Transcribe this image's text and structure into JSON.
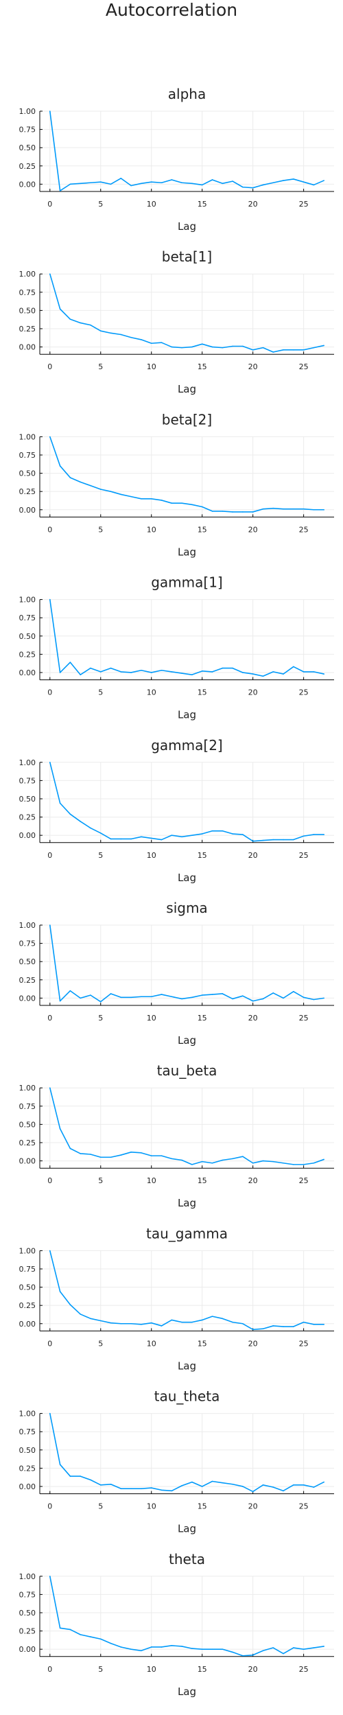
{
  "page_title": "Autocorrelation",
  "colors": {
    "series": "#009AFA",
    "axis": "#000000",
    "grid": "#ebebeb",
    "text": "#222222"
  },
  "chart_data": [
    {
      "type": "line",
      "title": "alpha",
      "xlabel": "Lag",
      "xlim": [
        -1,
        28
      ],
      "ylim": [
        -0.1,
        1.0
      ],
      "xticks": [
        0,
        5,
        10,
        15,
        20,
        25
      ],
      "xtick_labels": [
        "0",
        "5",
        "10",
        "15",
        "20",
        "25"
      ],
      "yticks": [
        0.0,
        0.25,
        0.5,
        0.75,
        1.0
      ],
      "ytick_labels": [
        "0.00",
        "0.25",
        "0.50",
        "0.75",
        "1.00"
      ],
      "grid": true,
      "legend": "none",
      "x": [
        0,
        1,
        2,
        3,
        4,
        5,
        6,
        7,
        8,
        9,
        10,
        11,
        12,
        13,
        14,
        15,
        16,
        17,
        18,
        19,
        20,
        21,
        22,
        23,
        24,
        25,
        26,
        27
      ],
      "y": [
        1.0,
        -0.09,
        0.0,
        0.01,
        0.02,
        0.03,
        0.0,
        0.08,
        -0.02,
        0.01,
        0.03,
        0.02,
        0.06,
        0.02,
        0.01,
        -0.01,
        0.06,
        0.01,
        0.04,
        -0.04,
        -0.05,
        -0.01,
        0.02,
        0.05,
        0.07,
        0.03,
        -0.01,
        0.05
      ]
    },
    {
      "type": "line",
      "title": "beta[1]",
      "xlabel": "Lag",
      "xlim": [
        -1,
        28
      ],
      "ylim": [
        -0.1,
        1.0
      ],
      "xticks": [
        0,
        5,
        10,
        15,
        20,
        25
      ],
      "xtick_labels": [
        "0",
        "5",
        "10",
        "15",
        "20",
        "25"
      ],
      "yticks": [
        0.0,
        0.25,
        0.5,
        0.75,
        1.0
      ],
      "ytick_labels": [
        "0.00",
        "0.25",
        "0.50",
        "0.75",
        "1.00"
      ],
      "grid": true,
      "legend": "none",
      "x": [
        0,
        1,
        2,
        3,
        4,
        5,
        6,
        7,
        8,
        9,
        10,
        11,
        12,
        13,
        14,
        15,
        16,
        17,
        18,
        19,
        20,
        21,
        22,
        23,
        24,
        25,
        26,
        27
      ],
      "y": [
        1.0,
        0.52,
        0.38,
        0.33,
        0.3,
        0.22,
        0.19,
        0.17,
        0.13,
        0.1,
        0.05,
        0.06,
        0.0,
        -0.01,
        0.0,
        0.04,
        0.0,
        -0.01,
        0.01,
        0.01,
        -0.04,
        -0.01,
        -0.07,
        -0.04,
        -0.04,
        -0.04,
        -0.01,
        0.02
      ]
    },
    {
      "type": "line",
      "title": "beta[2]",
      "xlabel": "Lag",
      "xlim": [
        -1,
        28
      ],
      "ylim": [
        -0.1,
        1.0
      ],
      "xticks": [
        0,
        5,
        10,
        15,
        20,
        25
      ],
      "xtick_labels": [
        "0",
        "5",
        "10",
        "15",
        "20",
        "25"
      ],
      "yticks": [
        0.0,
        0.25,
        0.5,
        0.75,
        1.0
      ],
      "ytick_labels": [
        "0.00",
        "0.25",
        "0.50",
        "0.75",
        "1.00"
      ],
      "grid": true,
      "legend": "none",
      "x": [
        0,
        1,
        2,
        3,
        4,
        5,
        6,
        7,
        8,
        9,
        10,
        11,
        12,
        13,
        14,
        15,
        16,
        17,
        18,
        19,
        20,
        21,
        22,
        23,
        24,
        25,
        26,
        27
      ],
      "y": [
        1.0,
        0.6,
        0.44,
        0.38,
        0.33,
        0.28,
        0.25,
        0.21,
        0.18,
        0.15,
        0.15,
        0.13,
        0.09,
        0.09,
        0.07,
        0.04,
        -0.02,
        -0.02,
        -0.03,
        -0.03,
        -0.03,
        0.01,
        0.02,
        0.01,
        0.01,
        0.01,
        0.0,
        0.0
      ]
    },
    {
      "type": "line",
      "title": "gamma[1]",
      "xlabel": "Lag",
      "xlim": [
        -1,
        28
      ],
      "ylim": [
        -0.1,
        1.0
      ],
      "xticks": [
        0,
        5,
        10,
        15,
        20,
        25
      ],
      "xtick_labels": [
        "0",
        "5",
        "10",
        "15",
        "20",
        "25"
      ],
      "yticks": [
        0.0,
        0.25,
        0.5,
        0.75,
        1.0
      ],
      "ytick_labels": [
        "0.00",
        "0.25",
        "0.50",
        "0.75",
        "1.00"
      ],
      "grid": true,
      "legend": "none",
      "x": [
        0,
        1,
        2,
        3,
        4,
        5,
        6,
        7,
        8,
        9,
        10,
        11,
        12,
        13,
        14,
        15,
        16,
        17,
        18,
        19,
        20,
        21,
        22,
        23,
        24,
        25,
        26,
        27
      ],
      "y": [
        1.0,
        0.0,
        0.14,
        -0.03,
        0.06,
        0.01,
        0.06,
        0.01,
        0.0,
        0.03,
        0.0,
        0.03,
        0.01,
        -0.01,
        -0.03,
        0.02,
        0.01,
        0.06,
        0.06,
        0.0,
        -0.02,
        -0.05,
        0.01,
        -0.02,
        0.08,
        0.01,
        0.01,
        -0.02
      ]
    },
    {
      "type": "line",
      "title": "gamma[2]",
      "xlabel": "Lag",
      "xlim": [
        -1,
        28
      ],
      "ylim": [
        -0.1,
        1.0
      ],
      "xticks": [
        0,
        5,
        10,
        15,
        20,
        25
      ],
      "xtick_labels": [
        "0",
        "5",
        "10",
        "15",
        "20",
        "25"
      ],
      "yticks": [
        0.0,
        0.25,
        0.5,
        0.75,
        1.0
      ],
      "ytick_labels": [
        "0.00",
        "0.25",
        "0.50",
        "0.75",
        "1.00"
      ],
      "grid": true,
      "legend": "none",
      "x": [
        0,
        1,
        2,
        3,
        4,
        5,
        6,
        7,
        8,
        9,
        10,
        11,
        12,
        13,
        14,
        15,
        16,
        17,
        18,
        19,
        20,
        21,
        22,
        23,
        24,
        25,
        26,
        27
      ],
      "y": [
        1.0,
        0.44,
        0.29,
        0.19,
        0.1,
        0.03,
        -0.05,
        -0.05,
        -0.05,
        -0.02,
        -0.04,
        -0.06,
        0.0,
        -0.02,
        0.0,
        0.02,
        0.06,
        0.06,
        0.02,
        0.01,
        -0.08,
        -0.07,
        -0.06,
        -0.06,
        -0.06,
        -0.01,
        0.01,
        0.01
      ]
    },
    {
      "type": "line",
      "title": "sigma",
      "xlabel": "Lag",
      "xlim": [
        -1,
        28
      ],
      "ylim": [
        -0.1,
        1.0
      ],
      "xticks": [
        0,
        5,
        10,
        15,
        20,
        25
      ],
      "xtick_labels": [
        "0",
        "5",
        "10",
        "15",
        "20",
        "25"
      ],
      "yticks": [
        0.0,
        0.25,
        0.5,
        0.75,
        1.0
      ],
      "ytick_labels": [
        "0.00",
        "0.25",
        "0.50",
        "0.75",
        "1.00"
      ],
      "grid": true,
      "legend": "none",
      "x": [
        0,
        1,
        2,
        3,
        4,
        5,
        6,
        7,
        8,
        9,
        10,
        11,
        12,
        13,
        14,
        15,
        16,
        17,
        18,
        19,
        20,
        21,
        22,
        23,
        24,
        25,
        26,
        27
      ],
      "y": [
        1.0,
        -0.04,
        0.1,
        0.0,
        0.04,
        -0.05,
        0.06,
        0.01,
        0.01,
        0.02,
        0.02,
        0.05,
        0.02,
        -0.01,
        0.01,
        0.04,
        0.05,
        0.06,
        -0.01,
        0.03,
        -0.04,
        -0.01,
        0.07,
        0.0,
        0.09,
        0.01,
        -0.02,
        0.0
      ]
    },
    {
      "type": "line",
      "title": "tau_beta",
      "xlabel": "Lag",
      "xlim": [
        -1,
        28
      ],
      "ylim": [
        -0.1,
        1.0
      ],
      "xticks": [
        0,
        5,
        10,
        15,
        20,
        25
      ],
      "xtick_labels": [
        "0",
        "5",
        "10",
        "15",
        "20",
        "25"
      ],
      "yticks": [
        0.0,
        0.25,
        0.5,
        0.75,
        1.0
      ],
      "ytick_labels": [
        "0.00",
        "0.25",
        "0.50",
        "0.75",
        "1.00"
      ],
      "grid": true,
      "legend": "none",
      "x": [
        0,
        1,
        2,
        3,
        4,
        5,
        6,
        7,
        8,
        9,
        10,
        11,
        12,
        13,
        14,
        15,
        16,
        17,
        18,
        19,
        20,
        21,
        22,
        23,
        24,
        25,
        26,
        27
      ],
      "y": [
        1.0,
        0.44,
        0.17,
        0.1,
        0.09,
        0.05,
        0.05,
        0.08,
        0.12,
        0.11,
        0.07,
        0.07,
        0.03,
        0.01,
        -0.05,
        -0.01,
        -0.03,
        0.01,
        0.03,
        0.06,
        -0.03,
        0.0,
        -0.01,
        -0.03,
        -0.05,
        -0.05,
        -0.03,
        0.02
      ]
    },
    {
      "type": "line",
      "title": "tau_gamma",
      "xlabel": "Lag",
      "xlim": [
        -1,
        28
      ],
      "ylim": [
        -0.1,
        1.0
      ],
      "xticks": [
        0,
        5,
        10,
        15,
        20,
        25
      ],
      "xtick_labels": [
        "0",
        "5",
        "10",
        "15",
        "20",
        "25"
      ],
      "yticks": [
        0.0,
        0.25,
        0.5,
        0.75,
        1.0
      ],
      "ytick_labels": [
        "0.00",
        "0.25",
        "0.50",
        "0.75",
        "1.00"
      ],
      "grid": true,
      "legend": "none",
      "x": [
        0,
        1,
        2,
        3,
        4,
        5,
        6,
        7,
        8,
        9,
        10,
        11,
        12,
        13,
        14,
        15,
        16,
        17,
        18,
        19,
        20,
        21,
        22,
        23,
        24,
        25,
        26,
        27
      ],
      "y": [
        1.0,
        0.44,
        0.26,
        0.13,
        0.07,
        0.04,
        0.01,
        0.0,
        0.0,
        -0.01,
        0.01,
        -0.03,
        0.05,
        0.02,
        0.02,
        0.05,
        0.1,
        0.07,
        0.02,
        0.0,
        -0.08,
        -0.07,
        -0.03,
        -0.04,
        -0.04,
        0.02,
        -0.01,
        -0.01
      ]
    },
    {
      "type": "line",
      "title": "tau_theta",
      "xlabel": "Lag",
      "xlim": [
        -1,
        28
      ],
      "ylim": [
        -0.1,
        1.0
      ],
      "xticks": [
        0,
        5,
        10,
        15,
        20,
        25
      ],
      "xtick_labels": [
        "0",
        "5",
        "10",
        "15",
        "20",
        "25"
      ],
      "yticks": [
        0.0,
        0.25,
        0.5,
        0.75,
        1.0
      ],
      "ytick_labels": [
        "0.00",
        "0.25",
        "0.50",
        "0.75",
        "1.00"
      ],
      "grid": true,
      "legend": "none",
      "x": [
        0,
        1,
        2,
        3,
        4,
        5,
        6,
        7,
        8,
        9,
        10,
        11,
        12,
        13,
        14,
        15,
        16,
        17,
        18,
        19,
        20,
        21,
        22,
        23,
        24,
        25,
        26,
        27
      ],
      "y": [
        1.0,
        0.3,
        0.14,
        0.14,
        0.09,
        0.02,
        0.03,
        -0.03,
        -0.03,
        -0.03,
        -0.02,
        -0.05,
        -0.06,
        0.01,
        0.06,
        0.0,
        0.07,
        0.05,
        0.03,
        0.0,
        -0.07,
        0.02,
        -0.01,
        -0.06,
        0.02,
        0.02,
        -0.01,
        0.06
      ]
    },
    {
      "type": "line",
      "title": "theta",
      "xlabel": "Lag",
      "xlim": [
        -1,
        28
      ],
      "ylim": [
        -0.1,
        1.0
      ],
      "xticks": [
        0,
        5,
        10,
        15,
        20,
        25
      ],
      "xtick_labels": [
        "0",
        "5",
        "10",
        "15",
        "20",
        "25"
      ],
      "yticks": [
        0.0,
        0.25,
        0.5,
        0.75,
        1.0
      ],
      "ytick_labels": [
        "0.00",
        "0.25",
        "0.50",
        "0.75",
        "1.00"
      ],
      "grid": true,
      "legend": "none",
      "x": [
        0,
        1,
        2,
        3,
        4,
        5,
        6,
        7,
        8,
        9,
        10,
        11,
        12,
        13,
        14,
        15,
        16,
        17,
        18,
        19,
        20,
        21,
        22,
        23,
        24,
        25,
        26,
        27
      ],
      "y": [
        1.0,
        0.29,
        0.27,
        0.2,
        0.17,
        0.14,
        0.08,
        0.03,
        0.0,
        -0.02,
        0.03,
        0.03,
        0.05,
        0.04,
        0.01,
        0.0,
        0.0,
        0.0,
        -0.04,
        -0.09,
        -0.08,
        -0.02,
        0.02,
        -0.06,
        0.02,
        0.0,
        0.02,
        0.04
      ]
    }
  ]
}
